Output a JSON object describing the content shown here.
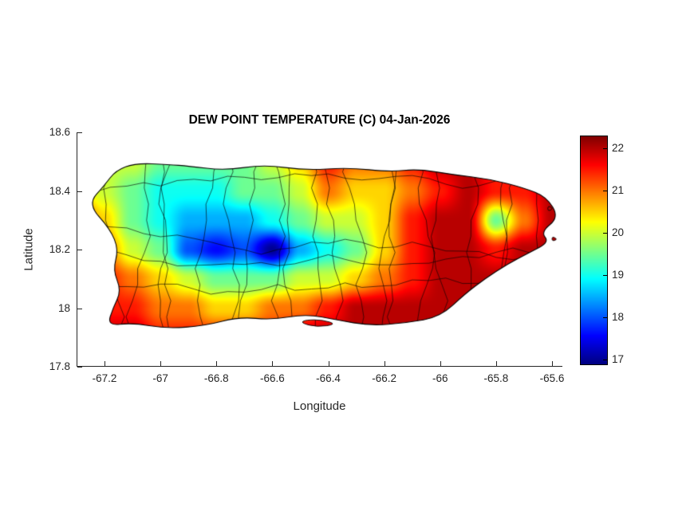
{
  "chart_data": {
    "type": "heatmap",
    "title": "DEW POINT TEMPERATURE (C) 04-Jan-2026",
    "xlabel": "Longitude",
    "ylabel": "Latitude",
    "xlim": [
      -67.3,
      -65.563
    ],
    "ylim": [
      17.8,
      18.6
    ],
    "xticks": [
      -67.2,
      -67,
      -66.8,
      -66.6,
      -66.4,
      -66.2,
      -66,
      -65.8,
      -65.6
    ],
    "xtick_labels": [
      "-67.2",
      "-67",
      "-66.8",
      "-66.6",
      "-66.4",
      "-66.2",
      "-66",
      "-65.8",
      "-65.6"
    ],
    "yticks": [
      17.8,
      18,
      18.2,
      18.4,
      18.6
    ],
    "ytick_labels": [
      "17.8",
      "18",
      "18.2",
      "18.4",
      "18.6"
    ],
    "grid_lines": "off",
    "overlay": "municipality boundary outlines",
    "colorbar": {
      "position": "right",
      "colormap": "jet",
      "vmin": 16.9,
      "vmax": 22.3,
      "ticks": [
        17,
        18,
        19,
        20,
        21,
        22
      ],
      "tick_labels": [
        "17",
        "18",
        "19",
        "20",
        "21",
        "22"
      ]
    },
    "grid": {
      "lons": [
        -67.3,
        -67.2,
        -67.1,
        -67.0,
        -66.9,
        -66.8,
        -66.7,
        -66.6,
        -66.5,
        -66.4,
        -66.3,
        -66.2,
        -66.1,
        -66.0,
        -65.9,
        -65.8,
        -65.7,
        -65.6,
        -65.5
      ],
      "lats": [
        18.6,
        18.5,
        18.4,
        18.3,
        18.2,
        18.1,
        18.0,
        17.9
      ],
      "values": [
        [
          20.0,
          20.0,
          20.0,
          19.5,
          19.5,
          19.5,
          19.5,
          20.0,
          20.5,
          21.5,
          21.0,
          21.0,
          21.5,
          22.0,
          22.0,
          22.0,
          22.0,
          22.0,
          22.0
        ],
        [
          20.0,
          20.0,
          20.0,
          19.5,
          19.5,
          19.5,
          19.5,
          20.0,
          20.5,
          21.5,
          21.0,
          21.0,
          21.5,
          22.0,
          22.0,
          21.5,
          22.0,
          22.0,
          22.0
        ],
        [
          20.5,
          20.0,
          19.5,
          19.0,
          19.0,
          19.0,
          19.5,
          19.5,
          20.0,
          21.0,
          20.5,
          20.5,
          21.0,
          21.5,
          22.0,
          21.5,
          21.5,
          22.0,
          22.0
        ],
        [
          21.5,
          20.5,
          19.5,
          19.0,
          18.5,
          18.5,
          18.5,
          19.0,
          19.5,
          20.0,
          20.0,
          20.5,
          21.5,
          22.0,
          22.0,
          19.5,
          21.0,
          22.0,
          22.0
        ],
        [
          21.5,
          21.0,
          20.0,
          19.5,
          18.0,
          17.6,
          18.0,
          17.0,
          18.5,
          19.0,
          19.5,
          20.5,
          21.5,
          22.0,
          22.0,
          21.5,
          22.0,
          22.0,
          22.0
        ],
        [
          21.5,
          21.5,
          21.0,
          20.5,
          20.0,
          19.5,
          19.5,
          19.5,
          20.0,
          20.0,
          20.5,
          21.0,
          21.5,
          22.0,
          22.0,
          22.0,
          22.0,
          22.0,
          22.0
        ],
        [
          21.5,
          21.5,
          21.5,
          21.0,
          21.0,
          20.5,
          20.5,
          21.0,
          21.0,
          21.5,
          22.0,
          22.0,
          22.0,
          22.0,
          22.0,
          22.0,
          22.0,
          22.0,
          22.0
        ],
        [
          22.0,
          22.0,
          22.0,
          21.5,
          21.5,
          21.5,
          21.5,
          21.5,
          22.0,
          22.0,
          22.0,
          22.0,
          22.0,
          22.0,
          22.0,
          22.0,
          22.0,
          22.0,
          22.0
        ]
      ]
    },
    "island_polygon": [
      [
        -67.16,
        18.47
      ],
      [
        -67.09,
        18.495
      ],
      [
        -66.97,
        18.49
      ],
      [
        -66.9,
        18.485
      ],
      [
        -66.77,
        18.47
      ],
      [
        -66.63,
        18.49
      ],
      [
        -66.48,
        18.47
      ],
      [
        -66.33,
        18.48
      ],
      [
        -66.18,
        18.465
      ],
      [
        -66.08,
        18.475
      ],
      [
        -65.95,
        18.455
      ],
      [
        -65.82,
        18.44
      ],
      [
        -65.7,
        18.41
      ],
      [
        -65.62,
        18.38
      ],
      [
        -65.575,
        18.31
      ],
      [
        -65.64,
        18.26
      ],
      [
        -65.61,
        18.225
      ],
      [
        -65.68,
        18.19
      ],
      [
        -65.76,
        18.15
      ],
      [
        -65.84,
        18.1
      ],
      [
        -65.91,
        18.05
      ],
      [
        -66.0,
        17.97
      ],
      [
        -66.12,
        17.95
      ],
      [
        -66.25,
        17.94
      ],
      [
        -66.37,
        17.96
      ],
      [
        -66.48,
        17.98
      ],
      [
        -66.6,
        17.96
      ],
      [
        -66.72,
        17.97
      ],
      [
        -66.84,
        17.94
      ],
      [
        -66.98,
        17.93
      ],
      [
        -67.1,
        17.95
      ],
      [
        -67.19,
        17.94
      ],
      [
        -67.17,
        18.0
      ],
      [
        -67.14,
        18.06
      ],
      [
        -67.17,
        18.13
      ],
      [
        -67.15,
        18.2
      ],
      [
        -67.18,
        18.27
      ],
      [
        -67.26,
        18.355
      ],
      [
        -67.2,
        18.42
      ]
    ],
    "islets": [
      [
        [
          -66.5,
          17.95
        ],
        [
          -66.44,
          17.935
        ],
        [
          -66.37,
          17.945
        ],
        [
          -66.42,
          17.96
        ],
        [
          -66.48,
          17.96
        ]
      ],
      [
        [
          -65.615,
          18.35
        ],
        [
          -65.595,
          18.34
        ],
        [
          -65.615,
          18.33
        ]
      ],
      [
        [
          -65.6,
          18.245
        ],
        [
          -65.58,
          18.235
        ],
        [
          -65.6,
          18.228
        ]
      ]
    ]
  }
}
